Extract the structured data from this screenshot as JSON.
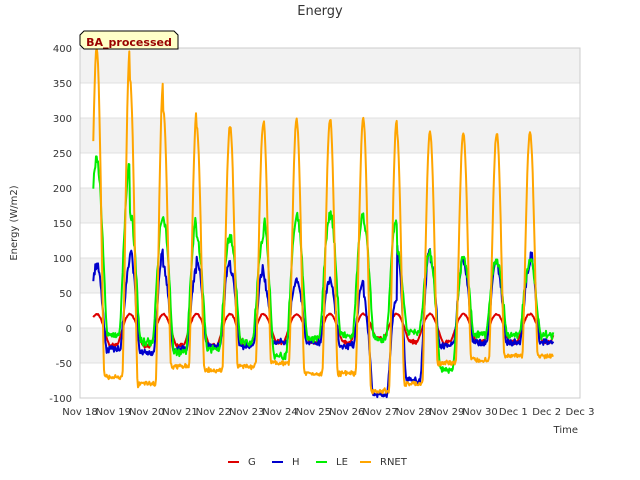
{
  "chart_data": {
    "type": "line",
    "title": "Energy",
    "xlabel": "Time",
    "ylabel": "Energy (W/m2)",
    "ylim": [
      -100,
      400
    ],
    "xlim": [
      0,
      15
    ],
    "x_ticks": [
      0,
      1,
      2,
      3,
      4,
      5,
      6,
      7,
      8,
      9,
      10,
      11,
      12,
      13,
      14,
      15
    ],
    "x_tick_labels": [
      "Nov 18",
      "Nov 19",
      "Nov 20",
      "Nov 21",
      "Nov 22",
      "Nov 23",
      "Nov 24",
      "Nov 25",
      "Nov 26",
      "Nov 27",
      "Nov 28",
      "Nov 29",
      "Nov 30",
      "Dec 1",
      "Dec 2",
      "Dec 3"
    ],
    "y_ticks": [
      -100,
      -50,
      0,
      50,
      100,
      150,
      200,
      250,
      300,
      350,
      400
    ],
    "y_tick_labels": [
      "-100",
      "-50",
      "0",
      "50",
      "100",
      "150",
      "200",
      "250",
      "300",
      "350",
      "400"
    ],
    "grid": "horizontal bands",
    "legend_position": "bottom-center",
    "badge": "BA_processed",
    "series": [
      {
        "name": "G",
        "color": "#dd0000",
        "peaks": [
          20,
          20,
          20,
          20,
          20,
          20,
          20,
          20,
          20,
          20,
          20,
          20,
          20,
          20
        ],
        "troughs": [
          -25,
          -25,
          -25,
          -25,
          -25,
          -20,
          -20,
          -20,
          -15,
          -20,
          -20,
          -20,
          -20,
          -20
        ]
      },
      {
        "name": "H",
        "color": "#0000cc",
        "peaks": [
          90,
          110,
          85,
          100,
          85,
          70,
          70,
          65,
          45,
          115,
          100,
          95,
          90,
          110
        ],
        "troughs": [
          -30,
          -35,
          -30,
          -25,
          -25,
          -20,
          -20,
          -25,
          -95,
          -75,
          -25,
          -20,
          -20,
          -20
        ]
      },
      {
        "name": "LE",
        "color": "#00ee00",
        "peaks": [
          240,
          165,
          155,
          130,
          130,
          155,
          160,
          165,
          155,
          110,
          100,
          100,
          95,
          100
        ],
        "troughs": [
          -10,
          -20,
          -35,
          -30,
          -20,
          -40,
          -15,
          -10,
          -15,
          -5,
          -60,
          -10,
          -10,
          -10
        ]
      },
      {
        "name": "RNET",
        "color": "#ffa500",
        "peaks": [
          400,
          355,
          310,
          288,
          292,
          298,
          295,
          300,
          297,
          282,
          279,
          277,
          280,
          280
        ],
        "troughs": [
          -70,
          -80,
          -55,
          -60,
          -55,
          -50,
          -65,
          -65,
          -90,
          -80,
          -50,
          -45,
          -40,
          -40
        ]
      }
    ]
  }
}
